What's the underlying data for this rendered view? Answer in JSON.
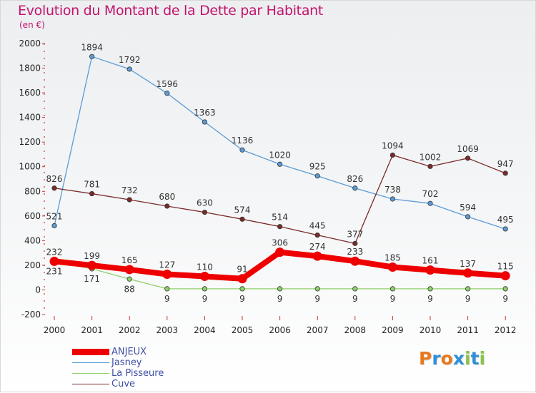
{
  "header": {
    "title": "Evolution du Montant de la Dette par Habitant",
    "unit": "(en €)"
  },
  "chart_data": {
    "type": "line",
    "categories": [
      "2000",
      "2001",
      "2002",
      "2003",
      "2004",
      "2005",
      "2006",
      "2007",
      "2008",
      "2009",
      "2010",
      "2011",
      "2012"
    ],
    "ylim": [
      -200,
      2000
    ],
    "y_ticks": [
      -200,
      0,
      200,
      400,
      600,
      800,
      1000,
      1200,
      1400,
      1600,
      1800,
      2000
    ],
    "grid": false,
    "legend_position": "bottom-left",
    "series": [
      {
        "name": "ANJEUX",
        "color": "#ee0000",
        "emphasis": true,
        "values": [
          232,
          199,
          165,
          127,
          110,
          91,
          306,
          274,
          233,
          185,
          161,
          137,
          115
        ],
        "labels": [
          "232",
          "199",
          "165",
          "127",
          "110",
          "91",
          "306",
          "274",
          "233",
          "185",
          "161",
          "137",
          "115"
        ]
      },
      {
        "name": "Jasney",
        "color": "#5b9bd5",
        "emphasis": false,
        "values": [
          521,
          1894,
          1792,
          1596,
          1363,
          1136,
          1020,
          925,
          826,
          738,
          702,
          594,
          495
        ],
        "labels": [
          "521",
          "1894",
          "1792",
          "1596",
          "1363",
          "1136",
          "1020",
          "925",
          "826",
          "738",
          "702",
          "594",
          "495"
        ]
      },
      {
        "name": "La Pisseure",
        "color": "#8fd16a",
        "emphasis": false,
        "values": [
          231,
          171,
          88,
          9,
          9,
          9,
          9,
          9,
          9,
          9,
          9,
          9,
          9
        ],
        "labels": [
          "231",
          "171",
          "88",
          "9",
          "9",
          "9",
          "9",
          "9",
          "9",
          "9",
          "9",
          "9",
          "9"
        ]
      },
      {
        "name": "Cuve",
        "color": "#7a2a2a",
        "emphasis": false,
        "values": [
          826,
          781,
          732,
          680,
          630,
          574,
          514,
          445,
          377,
          1094,
          1002,
          1069,
          947
        ],
        "labels": [
          "826",
          "781",
          "732",
          "680",
          "630",
          "574",
          "514",
          "445",
          "377",
          "1094",
          "1002",
          "1069",
          "947"
        ]
      }
    ]
  },
  "branding": {
    "logo_text": "Proxiti",
    "logo_colors": [
      "#e8791e",
      "#2f8fd6",
      "#e8791e",
      "#2f8fd6",
      "#8bc34a",
      "#2f8fd6",
      "#8bc34a"
    ]
  }
}
